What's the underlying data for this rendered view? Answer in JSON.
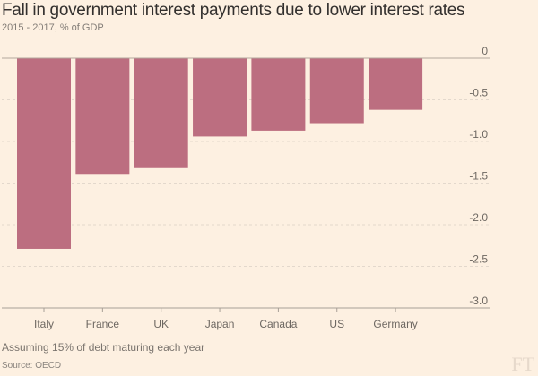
{
  "chart_data": {
    "type": "bar",
    "title": "Fall in government interest payments due to lower interest rates",
    "subtitle": "2015 - 2017, % of GDP",
    "categories": [
      "Italy",
      "France",
      "UK",
      "Japan",
      "Canada",
      "US",
      "Germany"
    ],
    "values": [
      -2.29,
      -1.39,
      -1.32,
      -0.94,
      -0.87,
      -0.78,
      -0.62
    ],
    "ylim": [
      -3.0,
      0
    ],
    "yticks": [
      0,
      -0.5,
      -1.0,
      -1.5,
      -2.0,
      -2.5,
      -3.0
    ],
    "ytick_labels": [
      "0",
      "-0.5",
      "-1.0",
      "-1.5",
      "-2.0",
      "-2.5",
      "-3.0"
    ],
    "xlabel": "",
    "ylabel": "",
    "grid": true,
    "axis_side": "right",
    "bar_color": "#bc6e80",
    "note": "Assuming 15% of debt maturing each year",
    "source": "Source: OECD"
  },
  "branding": {
    "logo": "FT"
  }
}
